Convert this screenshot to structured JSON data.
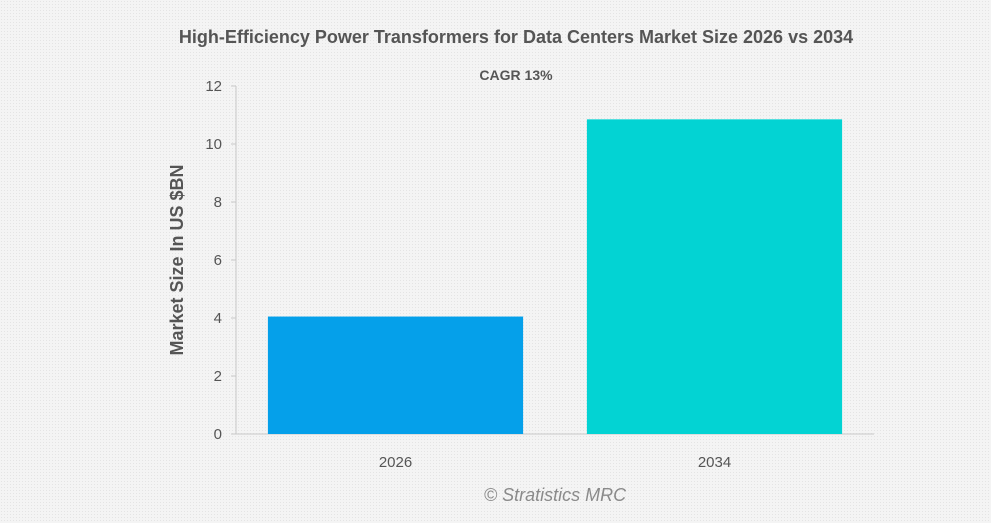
{
  "chart_data": {
    "type": "bar",
    "title": "High-Efficiency Power Transformers for Data Centers Market Size 2026 vs 2034",
    "subtitle": "CAGR 13%",
    "xlabel": "",
    "ylabel": "Market Size In US $BN",
    "categories": [
      "2026",
      "2034"
    ],
    "values": [
      4.05,
      10.85
    ],
    "colors": [
      "#05a0ea",
      "#03d3d3"
    ],
    "ylim": [
      0,
      12
    ],
    "yticks": [
      "0",
      "2",
      "4",
      "6",
      "8",
      "10",
      "12"
    ],
    "grid": false,
    "legend": "none"
  },
  "watermark": "© Stratistics MRC"
}
